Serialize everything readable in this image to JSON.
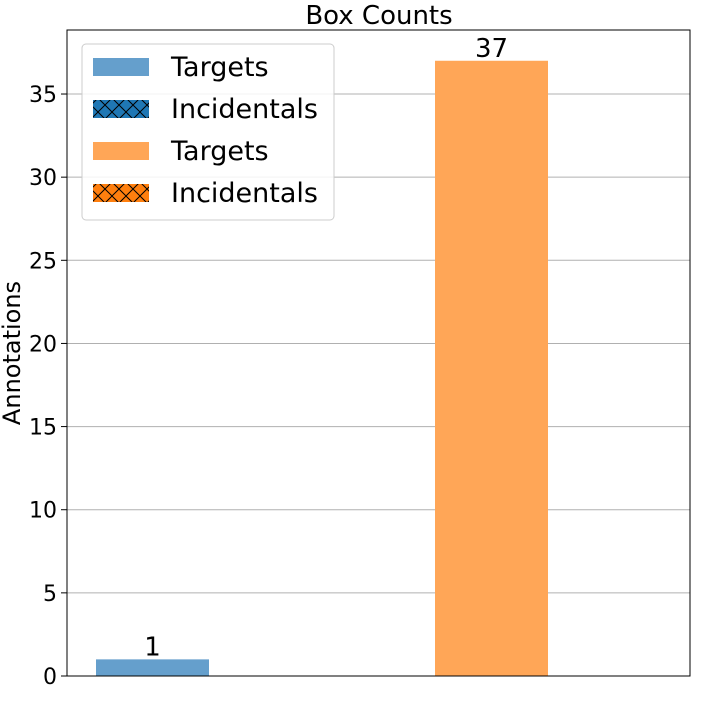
{
  "chart_data": {
    "type": "bar",
    "title": "Box Counts",
    "xlabel": "",
    "ylabel": "Annotations",
    "ylim": [
      0,
      38.85
    ],
    "yticks": [
      0,
      5,
      10,
      15,
      20,
      25,
      30,
      35
    ],
    "grid": "horizontal",
    "legend_position": "top-left",
    "series": [
      {
        "name": "Targets",
        "color": "#659fcc",
        "values": [
          1,
          0
        ],
        "value_labels": [
          "1",
          ""
        ]
      },
      {
        "name": "Incidentals",
        "color": "#1f77b4",
        "hatch": "x",
        "values": [
          0,
          0
        ],
        "value_labels": [
          "",
          ""
        ]
      },
      {
        "name": "Targets",
        "color": "#ffa657",
        "values": [
          0,
          37
        ],
        "value_labels": [
          "",
          "37"
        ]
      },
      {
        "name": "Incidentals",
        "color": "#ff7f0e",
        "hatch": "x",
        "values": [
          0,
          0
        ],
        "value_labels": [
          "",
          ""
        ]
      }
    ]
  }
}
